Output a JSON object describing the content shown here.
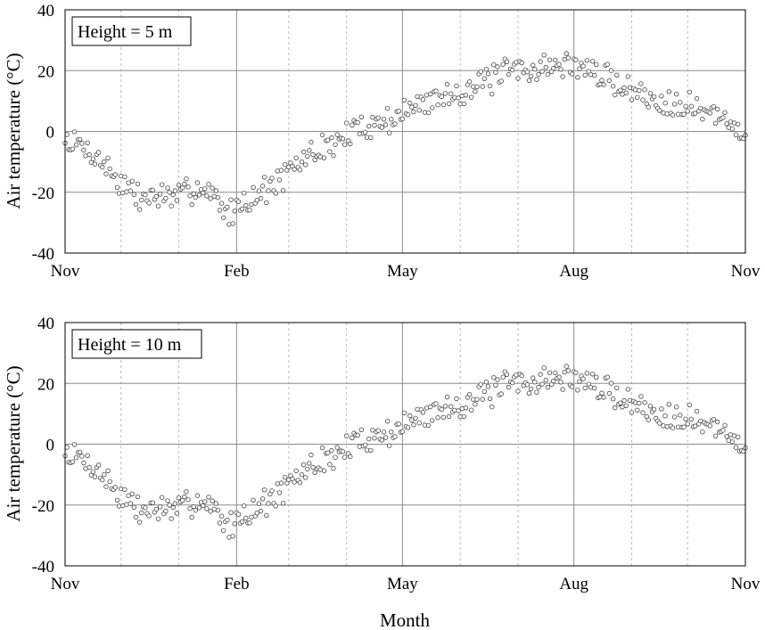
{
  "chart_data": {
    "type": "scatter",
    "xlabel": "Month",
    "ylabel": "Air temperature (°C)",
    "x_tick_labels": [
      "Nov",
      "Feb",
      "May",
      "Aug",
      "Nov"
    ],
    "x_major_days": [
      0,
      92,
      181,
      273,
      365
    ],
    "x_minor_days": [
      30,
      61,
      120,
      151,
      212,
      243,
      304,
      334
    ],
    "xlim": [
      0,
      365
    ],
    "ylim": [
      -40,
      40
    ],
    "y_ticks": [
      -40,
      -20,
      0,
      20,
      40
    ],
    "grid": true,
    "marker": "open-circle",
    "anchors": [
      [
        0,
        -3
      ],
      [
        10,
        -5
      ],
      [
        20,
        -10
      ],
      [
        30,
        -17
      ],
      [
        40,
        -22
      ],
      [
        50,
        -21
      ],
      [
        60,
        -22
      ],
      [
        70,
        -18
      ],
      [
        80,
        -21
      ],
      [
        88,
        -28
      ],
      [
        92,
        -24
      ],
      [
        100,
        -22
      ],
      [
        110,
        -18
      ],
      [
        120,
        -14
      ],
      [
        130,
        -8
      ],
      [
        140,
        -5
      ],
      [
        150,
        -2
      ],
      [
        160,
        2
      ],
      [
        170,
        3
      ],
      [
        181,
        6
      ],
      [
        195,
        10
      ],
      [
        210,
        13
      ],
      [
        225,
        16
      ],
      [
        240,
        20
      ],
      [
        255,
        21
      ],
      [
        273,
        22
      ],
      [
        285,
        19
      ],
      [
        300,
        15
      ],
      [
        315,
        10
      ],
      [
        330,
        10
      ],
      [
        345,
        6
      ],
      [
        365,
        0
      ]
    ],
    "panels": [
      {
        "legend": "Height = 5 m",
        "seed": 7
      },
      {
        "legend": "Height = 10 m",
        "seed": 7
      }
    ]
  }
}
